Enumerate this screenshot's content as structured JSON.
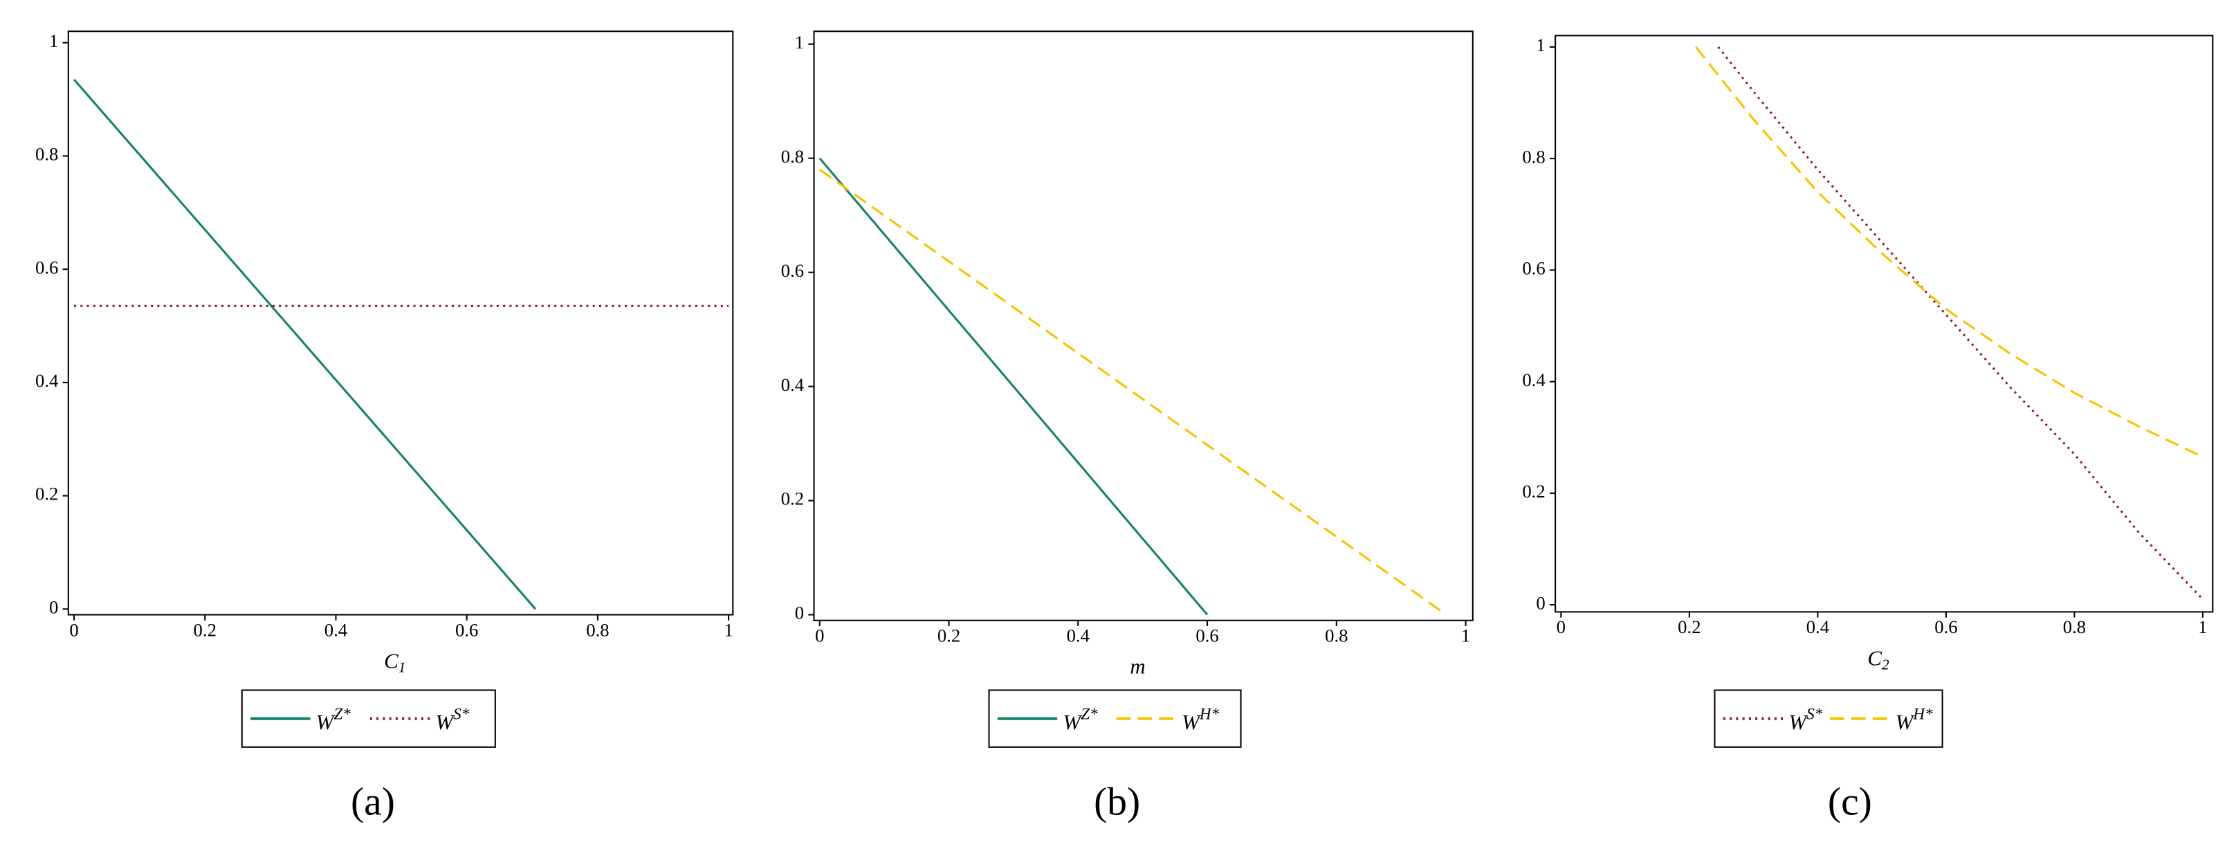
{
  "chart_data": [
    {
      "type": "line",
      "label": "(a)",
      "xlabel": "C1",
      "xlim": [
        0,
        1
      ],
      "ylim": [
        0,
        1
      ],
      "xticks": [
        0,
        0.2,
        0.4,
        0.6,
        0.8,
        1
      ],
      "yticks": [
        0,
        0.2,
        0.4,
        0.6,
        0.8,
        1
      ],
      "series": [
        {
          "name": "WZ*",
          "color": "#17806d",
          "linestyle": "solid",
          "x": [
            0,
            0.705
          ],
          "values": [
            0.935,
            0
          ]
        },
        {
          "name": "WS*",
          "color": "#8c1c2c",
          "linestyle": "dotted",
          "x": [
            0,
            1
          ],
          "values": [
            0.535,
            0.535
          ]
        }
      ]
    },
    {
      "type": "line",
      "label": "(b)",
      "xlabel": "m",
      "xlim": [
        0,
        1
      ],
      "ylim": [
        0,
        1
      ],
      "xticks": [
        0,
        0.2,
        0.4,
        0.6,
        0.8,
        1
      ],
      "yticks": [
        0,
        0.2,
        0.4,
        0.6,
        0.8,
        1
      ],
      "series": [
        {
          "name": "WZ*",
          "color": "#17806d",
          "linestyle": "solid",
          "x": [
            0,
            0.6
          ],
          "values": [
            0.8,
            0
          ]
        },
        {
          "name": "WH*",
          "color": "#f5c400",
          "linestyle": "dashed",
          "x": [
            0,
            0.97
          ],
          "values": [
            0.78,
            0
          ]
        }
      ]
    },
    {
      "type": "line",
      "label": "(c)",
      "xlabel": "C2",
      "xlim": [
        0,
        1
      ],
      "ylim": [
        0,
        1
      ],
      "xticks": [
        0,
        0.2,
        0.4,
        0.6,
        0.8,
        1
      ],
      "yticks": [
        0,
        0.2,
        0.4,
        0.6,
        0.8,
        1
      ],
      "series": [
        {
          "name": "WS*",
          "color": "#8c1c2c",
          "linestyle": "dotted",
          "x": [
            0.245,
            0.3,
            0.4,
            0.5,
            0.6,
            0.7,
            0.8,
            0.9,
            1.0
          ],
          "values": [
            1.0,
            0.92,
            0.78,
            0.65,
            0.52,
            0.39,
            0.27,
            0.13,
            0.01
          ]
        },
        {
          "name": "WH*",
          "color": "#f5c400",
          "linestyle": "dashed",
          "x": [
            0.21,
            0.3,
            0.4,
            0.5,
            0.6,
            0.7,
            0.8,
            0.9,
            1.0
          ],
          "values": [
            1.0,
            0.87,
            0.74,
            0.63,
            0.53,
            0.45,
            0.38,
            0.32,
            0.265
          ]
        }
      ]
    }
  ]
}
